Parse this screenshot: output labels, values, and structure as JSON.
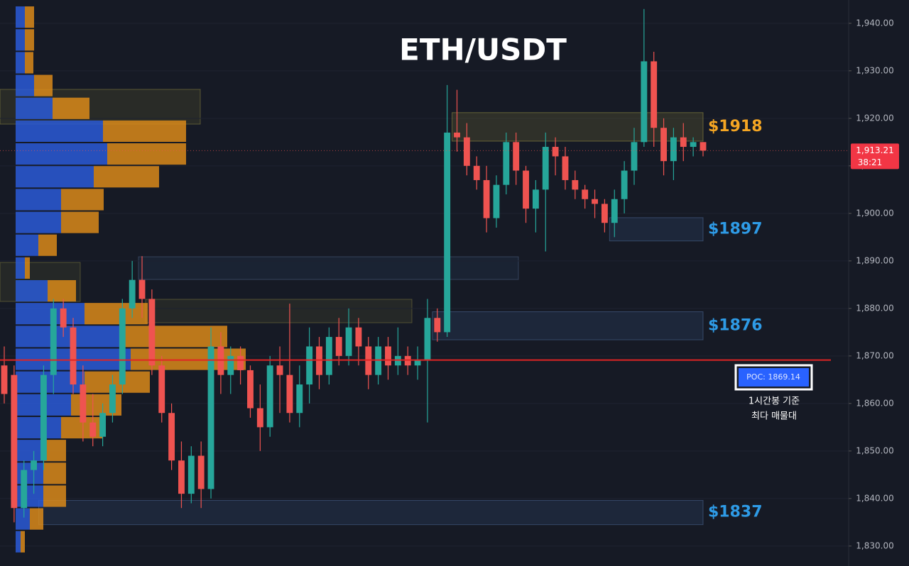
{
  "chart_data": {
    "type": "candlestick",
    "title": "ETH/USDT",
    "up_color": "#26a69a",
    "down_color": "#ef5350",
    "ylim": [
      1825.8,
      1944.9
    ],
    "yticks": [
      {
        "value": 1830,
        "label": "1,830.00"
      },
      {
        "value": 1840,
        "label": "1,840.00"
      },
      {
        "value": 1850,
        "label": "1,850.00"
      },
      {
        "value": 1860,
        "label": "1,860.00"
      },
      {
        "value": 1870,
        "label": "1,870.00"
      },
      {
        "value": 1880,
        "label": "1,880.00"
      },
      {
        "value": 1890,
        "label": "1,890.00"
      },
      {
        "value": 1900,
        "label": "1,900.00"
      },
      {
        "value": 1910,
        "label": "1,910.00"
      },
      {
        "value": 1920,
        "label": "1,920.00"
      },
      {
        "value": 1930,
        "label": "1,930.00"
      },
      {
        "value": 1940,
        "label": "1,940.00"
      }
    ],
    "grid": true,
    "candles": [
      [
        1868,
        1872,
        1860,
        1862
      ],
      [
        1866,
        1868,
        1835,
        1838
      ],
      [
        1838,
        1848,
        1836,
        1846
      ],
      [
        1846,
        1850,
        1841,
        1848
      ],
      [
        1848,
        1868,
        1846,
        1866
      ],
      [
        1866,
        1882,
        1862,
        1880
      ],
      [
        1880,
        1882,
        1874,
        1876
      ],
      [
        1876,
        1878,
        1862,
        1864
      ],
      [
        1864,
        1868,
        1852,
        1856
      ],
      [
        1856,
        1862,
        1851,
        1853
      ],
      [
        1853,
        1860,
        1851,
        1858
      ],
      [
        1858,
        1866,
        1856,
        1864
      ],
      [
        1864,
        1882,
        1862,
        1880
      ],
      [
        1880,
        1890,
        1878,
        1886
      ],
      [
        1886,
        1891,
        1878,
        1882
      ],
      [
        1882,
        1884,
        1866,
        1868
      ],
      [
        1868,
        1870,
        1856,
        1858
      ],
      [
        1858,
        1860,
        1846,
        1848
      ],
      [
        1848,
        1852,
        1838,
        1841
      ],
      [
        1841,
        1851,
        1839,
        1849
      ],
      [
        1849,
        1852,
        1838,
        1842
      ],
      [
        1842,
        1876,
        1840,
        1872
      ],
      [
        1872,
        1875,
        1862,
        1866
      ],
      [
        1866,
        1872,
        1862,
        1870
      ],
      [
        1870,
        1872,
        1864,
        1867
      ],
      [
        1867,
        1868,
        1857,
        1859
      ],
      [
        1859,
        1864,
        1850,
        1855
      ],
      [
        1855,
        1870,
        1853,
        1868
      ],
      [
        1868,
        1872,
        1858,
        1866
      ],
      [
        1866,
        1881,
        1856,
        1858
      ],
      [
        1858,
        1868,
        1855,
        1864
      ],
      [
        1864,
        1876,
        1860,
        1872
      ],
      [
        1872,
        1874,
        1863,
        1866
      ],
      [
        1866,
        1876,
        1864,
        1874
      ],
      [
        1874,
        1878,
        1868,
        1870
      ],
      [
        1870,
        1880,
        1868,
        1876
      ],
      [
        1876,
        1878,
        1868,
        1872
      ],
      [
        1872,
        1874,
        1863,
        1866
      ],
      [
        1866,
        1874,
        1864,
        1872
      ],
      [
        1872,
        1874,
        1865,
        1868
      ],
      [
        1868,
        1876,
        1866,
        1870
      ],
      [
        1870,
        1872,
        1866,
        1868
      ],
      [
        1868,
        1872,
        1865,
        1869
      ],
      [
        1869,
        1882,
        1856,
        1878
      ],
      [
        1878,
        1880,
        1873,
        1875
      ],
      [
        1875,
        1927,
        1874,
        1917
      ],
      [
        1917,
        1926,
        1913,
        1916
      ],
      [
        1916,
        1919,
        1908,
        1910
      ],
      [
        1910,
        1912,
        1905,
        1907
      ],
      [
        1907,
        1910,
        1896,
        1899
      ],
      [
        1899,
        1908,
        1897,
        1906
      ],
      [
        1906,
        1917,
        1904,
        1915
      ],
      [
        1915,
        1917,
        1906,
        1909
      ],
      [
        1909,
        1910,
        1898,
        1901
      ],
      [
        1901,
        1907,
        1896,
        1905
      ],
      [
        1905,
        1917,
        1892,
        1914
      ],
      [
        1914,
        1916,
        1908,
        1912
      ],
      [
        1912,
        1914,
        1905,
        1907
      ],
      [
        1907,
        1909,
        1903,
        1905
      ],
      [
        1905,
        1906,
        1901,
        1903
      ],
      [
        1903,
        1905,
        1899,
        1902
      ],
      [
        1902,
        1903,
        1896,
        1898
      ],
      [
        1898,
        1905,
        1895,
        1903
      ],
      [
        1903,
        1911,
        1900,
        1909
      ],
      [
        1909,
        1918,
        1906,
        1915
      ],
      [
        1915,
        1943,
        1914,
        1932
      ],
      [
        1932,
        1934,
        1914,
        1918
      ],
      [
        1918,
        1920,
        1908,
        1911
      ],
      [
        1911,
        1918,
        1907,
        1916
      ],
      [
        1916,
        1919,
        1911,
        1914
      ],
      [
        1914,
        1916,
        1912,
        1915
      ],
      [
        1915,
        1915,
        1912,
        1913.21
      ]
    ],
    "last_price": {
      "value": 1913.21,
      "label": "1,913.21"
    },
    "countdown": "38:21",
    "poc": {
      "value": 1869.14,
      "label": "POC: 1869.14"
    },
    "poc_note": [
      "1시간봉 기준",
      "최다 매물대"
    ],
    "zones": [
      {
        "label": "$1918",
        "top": 1921.2,
        "bottom": 1915.2,
        "start": 46,
        "color": "#f5a623"
      },
      {
        "label": "$1897",
        "top": 1899.1,
        "bottom": 1894.2,
        "start": 62,
        "color": "#2e9be6"
      },
      {
        "label": "$1876",
        "top": 1879.3,
        "bottom": 1873.4,
        "start": 44,
        "color": "#2e9be6"
      },
      {
        "label": "$1837",
        "top": 1839.6,
        "bottom": 1834.5,
        "start": 4,
        "color": "#2e9be6"
      }
    ],
    "profile": {
      "buy_color": "#2a5bd7",
      "sell_color": "#d9891a",
      "bins": [
        1828.5,
        1833.3,
        1838.1,
        1842.9,
        1847.7,
        1852.5,
        1857.3,
        1862.1,
        1866.9,
        1871.7,
        1876.5,
        1881.3,
        1886.1,
        1890.9,
        1895.7,
        1900.5,
        1905.3,
        1910.1,
        1914.9,
        1919.7,
        1924.5,
        1929.3,
        1934.1,
        1938.9,
        1943.7
      ],
      "buy": [
        7,
        20,
        39,
        39,
        39,
        64,
        78,
        97,
        162,
        148,
        97,
        45,
        13,
        32,
        64,
        64,
        110,
        129,
        123,
        52,
        26,
        13,
        13,
        13
      ],
      "sell": [
        6,
        19,
        32,
        32,
        32,
        59,
        71,
        92,
        162,
        150,
        89,
        40,
        7,
        26,
        53,
        60,
        92,
        111,
        117,
        52,
        26,
        12,
        13,
        13
      ]
    }
  }
}
